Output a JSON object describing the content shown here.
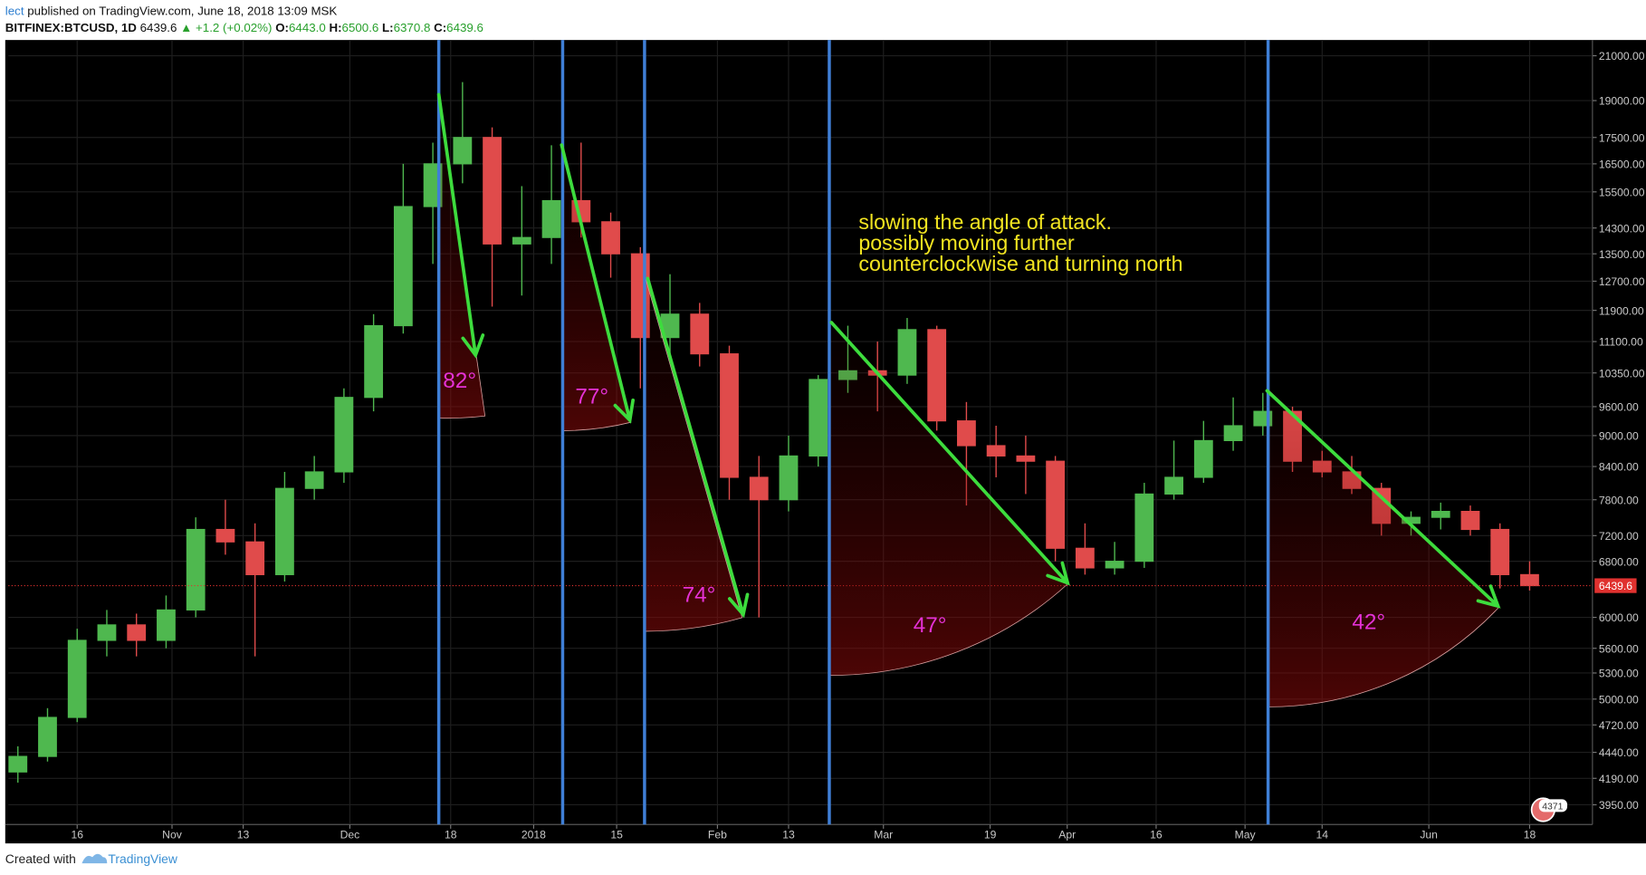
{
  "header": {
    "author": "lect",
    "published": "published on TradingView.com, June 18, 2018 13:09 MSK",
    "symbol": "BITFINEX:BTCUSD, 1D",
    "last": "6439.6",
    "change": "▲ +1.2 (+0.02%)",
    "quote": [
      {
        "label": "O:",
        "value": "6443.0"
      },
      {
        "label": "H:",
        "value": "6500.6"
      },
      {
        "label": "L:",
        "value": "6370.8"
      },
      {
        "label": "C:",
        "value": "6439.6"
      }
    ]
  },
  "chart_data": {
    "type": "candlestick",
    "x": [
      5,
      10,
      15,
      20,
      25,
      30,
      35,
      40,
      45,
      50,
      55,
      60,
      65,
      70,
      75,
      80,
      85,
      90,
      95,
      100,
      105,
      110,
      115,
      120,
      125,
      130,
      135,
      140,
      145,
      150,
      155,
      160,
      165,
      170,
      175,
      180,
      185,
      190,
      195,
      200,
      205,
      210,
      215,
      220,
      225,
      230,
      235,
      240,
      245,
      250,
      255,
      260
    ],
    "open": [
      4250,
      4400,
      4800,
      5700,
      5900,
      5700,
      6100,
      7300,
      7100,
      6600,
      8000,
      8300,
      9800,
      11500,
      15000,
      16500,
      17500,
      13800,
      14000,
      15200,
      14500,
      13500,
      11200,
      11800,
      10800,
      8200,
      7800,
      8600,
      10200,
      10400,
      10300,
      11400,
      9300,
      8800,
      8600,
      8500,
      7000,
      6700,
      6800,
      7900,
      8200,
      8900,
      9200,
      9500,
      8500,
      8300,
      8000,
      7400,
      7500,
      7600,
      7300,
      6600
    ],
    "high": [
      4500,
      4900,
      5850,
      6100,
      6050,
      6300,
      7500,
      7800,
      7400,
      8300,
      8600,
      10000,
      11800,
      16500,
      17300,
      19800,
      17900,
      15700,
      17200,
      17300,
      14800,
      13700,
      12900,
      12100,
      11000,
      8600,
      9000,
      10300,
      11500,
      11100,
      11700,
      11500,
      9700,
      9200,
      9000,
      8600,
      7400,
      7100,
      8100,
      8900,
      9300,
      9800,
      9900,
      9600,
      8700,
      8600,
      8100,
      7600,
      7750,
      7700,
      7400,
      6800
    ],
    "low": [
      4150,
      4350,
      4750,
      5500,
      5500,
      5600,
      6000,
      6900,
      5500,
      6500,
      7800,
      8100,
      9500,
      11300,
      13200,
      15800,
      12000,
      12300,
      13200,
      14000,
      12800,
      10000,
      10800,
      10500,
      7800,
      6000,
      7600,
      8400,
      9900,
      9500,
      10100,
      9100,
      7700,
      8200,
      7900,
      6800,
      6600,
      6600,
      6700,
      7800,
      8100,
      8700,
      9000,
      8300,
      8200,
      7900,
      7200,
      7200,
      7300,
      7200,
      6400,
      6370
    ],
    "close": [
      4400,
      4800,
      5700,
      5900,
      5700,
      6100,
      7300,
      7100,
      6600,
      8000,
      8300,
      9800,
      11500,
      15000,
      16500,
      17500,
      13800,
      14000,
      15200,
      14500,
      13500,
      11200,
      11800,
      10800,
      8200,
      7800,
      8600,
      10200,
      10400,
      10300,
      11400,
      9300,
      8800,
      8600,
      8500,
      7000,
      6700,
      6800,
      7900,
      8200,
      8900,
      9200,
      9500,
      8500,
      8300,
      8000,
      7400,
      7500,
      7600,
      7300,
      6600,
      6440
    ],
    "up_color": "#4fb84f",
    "down_color": "#e04b4b",
    "xlim": [
      3.4,
      270.6
    ],
    "xticks": [
      {
        "value": 15,
        "label": "16"
      },
      {
        "value": 31,
        "label": "Nov"
      },
      {
        "value": 43,
        "label": "13"
      },
      {
        "value": 61,
        "label": "Dec"
      },
      {
        "value": 78,
        "label": "18"
      },
      {
        "value": 92,
        "label": "2018"
      },
      {
        "value": 106,
        "label": "15"
      },
      {
        "value": 123,
        "label": "Feb"
      },
      {
        "value": 135,
        "label": "13"
      },
      {
        "value": 151,
        "label": "Mar"
      },
      {
        "value": 169,
        "label": "19"
      },
      {
        "value": 182,
        "label": "Apr"
      },
      {
        "value": 197,
        "label": "16"
      },
      {
        "value": 212,
        "label": "May"
      },
      {
        "value": 225,
        "label": "14"
      },
      {
        "value": 243,
        "label": "Jun"
      },
      {
        "value": 260,
        "label": "18"
      }
    ],
    "ylim": [
      3780,
      21750
    ],
    "log_y": true,
    "grid": true,
    "yticks": [
      {
        "value": 21000,
        "label": "21000.00"
      },
      {
        "value": 19000,
        "label": "19000.00"
      },
      {
        "value": 17500,
        "label": "17500.00"
      },
      {
        "value": 16500,
        "label": "16500.00"
      },
      {
        "value": 15500,
        "label": "15500.00"
      },
      {
        "value": 14300,
        "label": "14300.00"
      },
      {
        "value": 13500,
        "label": "13500.00"
      },
      {
        "value": 12700,
        "label": "12700.00"
      },
      {
        "value": 11900,
        "label": "11900.00"
      },
      {
        "value": 11100,
        "label": "11100.00"
      },
      {
        "value": 10350,
        "label": "10350.00"
      },
      {
        "value": 9600,
        "label": "9600.00"
      },
      {
        "value": 9000,
        "label": "9000.00"
      },
      {
        "value": 8400,
        "label": "8400.00"
      },
      {
        "value": 7800,
        "label": "7800.00"
      },
      {
        "value": 7200,
        "label": "7200.00"
      },
      {
        "value": 6800,
        "label": "6800.00"
      },
      {
        "value": 6000,
        "label": "6000.00"
      },
      {
        "value": 5600,
        "label": "5600.00"
      },
      {
        "value": 5300,
        "label": "5300.00"
      },
      {
        "value": 5000,
        "label": "5000.00"
      },
      {
        "value": 4720,
        "label": "4720.00"
      },
      {
        "value": 4440,
        "label": "4440.00"
      },
      {
        "value": 4190,
        "label": "4190.00"
      },
      {
        "value": 3950,
        "label": "3950.00"
      }
    ],
    "last_price": 6439.6,
    "last_color": "#e0312f",
    "note": [
      "slowing the angle of attack.",
      "possibly moving further",
      "counterclockwise and turning north"
    ],
    "angles": [
      "82°",
      "77°",
      "74°",
      "47°",
      "42°"
    ],
    "badge": "4371"
  },
  "footer": {
    "created": "Created with",
    "brand": "TradingView"
  }
}
